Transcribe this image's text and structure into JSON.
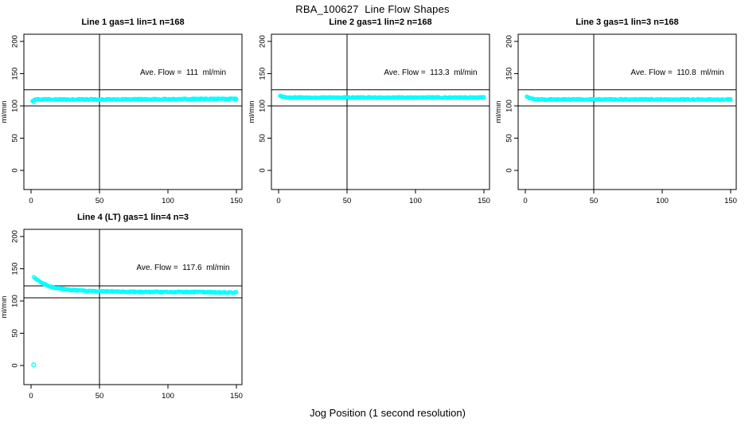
{
  "figure": {
    "title": "RBA_100627  Line Flow Shapes",
    "xlabel": "Jog Position (1 second resolution)",
    "background": "#FFFFFF",
    "point_color": "#00FFFF",
    "axis_color": "#000000"
  },
  "chart_data": [
    {
      "type": "scatter",
      "title": "Line 1 gas=1 lin=1 n=168",
      "annotation": "Ave. Flow =  111  ml/min",
      "ave_flow_ml_min": 111,
      "n": 168,
      "ylabel": "ml/min",
      "x_ticks": [
        0,
        50,
        100,
        150
      ],
      "y_ticks": [
        0,
        50,
        100,
        150,
        200
      ],
      "x_range": [
        1,
        150
      ],
      "ylim": [
        -30,
        211
      ],
      "vline_x": 50,
      "ref_lines": [
        125,
        100
      ],
      "profile_keypoints": [
        [
          1,
          107
        ],
        [
          2,
          109
        ],
        [
          4,
          110
        ],
        [
          60,
          110
        ],
        [
          100,
          110.5
        ],
        [
          150,
          111
        ]
      ],
      "outliers": [
        [
          2,
          106.5
        ]
      ],
      "band_halfwidth": 0.9
    },
    {
      "type": "scatter",
      "title": "Line 2 gas=1 lin=2 n=168",
      "annotation": "Ave. Flow =  113.3  ml/min",
      "ave_flow_ml_min": 113.3,
      "n": 168,
      "ylabel": "ml/min",
      "x_ticks": [
        0,
        50,
        100,
        150
      ],
      "y_ticks": [
        0,
        50,
        100,
        150,
        200
      ],
      "x_range": [
        1,
        150
      ],
      "ylim": [
        -30,
        211
      ],
      "vline_x": 50,
      "ref_lines": [
        125,
        100
      ],
      "profile_keypoints": [
        [
          1,
          116
        ],
        [
          3,
          114
        ],
        [
          8,
          113
        ],
        [
          80,
          113
        ],
        [
          150,
          113
        ]
      ],
      "outliers": [],
      "band_halfwidth": 0.9
    },
    {
      "type": "scatter",
      "title": "Line 3 gas=1 lin=3 n=168",
      "annotation": "Ave. Flow =  110.8  ml/min",
      "ave_flow_ml_min": 110.8,
      "n": 168,
      "ylabel": "ml/min",
      "x_ticks": [
        0,
        50,
        100,
        150
      ],
      "y_ticks": [
        0,
        50,
        100,
        150,
        200
      ],
      "x_range": [
        1,
        150
      ],
      "ylim": [
        -30,
        211
      ],
      "vline_x": 50,
      "ref_lines": [
        125,
        100
      ],
      "profile_keypoints": [
        [
          1,
          115
        ],
        [
          2,
          113
        ],
        [
          5,
          111
        ],
        [
          10,
          110
        ],
        [
          80,
          110
        ],
        [
          150,
          110
        ]
      ],
      "outliers": [],
      "band_halfwidth": 0.9
    },
    {
      "type": "scatter",
      "title": "Line 4 (LT) gas=1 lin=4 n=3",
      "annotation": "Ave. Flow =  117.6  ml/min",
      "ave_flow_ml_min": 117.6,
      "n": 3,
      "ylabel": "ml/min",
      "x_ticks": [
        0,
        50,
        100,
        150
      ],
      "y_ticks": [
        0,
        50,
        100,
        150,
        200
      ],
      "x_range": [
        2,
        150
      ],
      "ylim": [
        -30,
        211
      ],
      "vline_x": 50,
      "ref_lines": [
        123.5,
        105
      ],
      "profile_keypoints": [
        [
          2,
          137
        ],
        [
          4,
          133
        ],
        [
          7,
          129
        ],
        [
          11,
          125
        ],
        [
          16,
          121
        ],
        [
          22,
          119
        ],
        [
          30,
          117
        ],
        [
          40,
          116
        ],
        [
          55,
          115
        ],
        [
          80,
          114
        ],
        [
          120,
          114
        ],
        [
          150,
          113
        ]
      ],
      "outliers": [
        [
          2,
          1
        ]
      ],
      "band_halfwidth": 0.9
    }
  ]
}
